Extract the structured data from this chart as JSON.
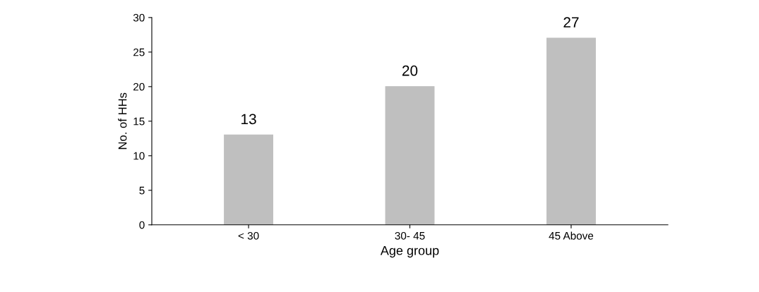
{
  "chart_data": {
    "type": "bar",
    "xlabel": "Age group",
    "ylabel": "No. of HHs",
    "categories": [
      "< 30",
      "30- 45",
      "45 Above"
    ],
    "values": [
      13,
      20,
      27
    ],
    "color": "#bfbfbf",
    "ylim": [
      0,
      30
    ],
    "yticks": [
      0,
      5,
      10,
      15,
      20,
      25,
      30
    ],
    "grid": false,
    "data_labels": true
  }
}
